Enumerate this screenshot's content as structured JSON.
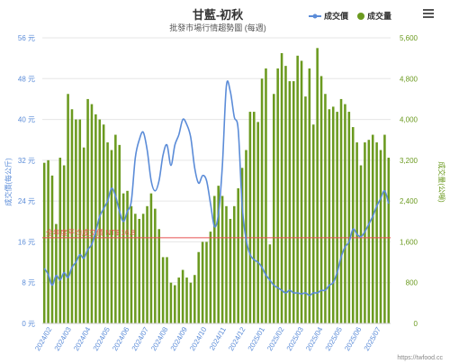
{
  "chart_data": {
    "type": "bar",
    "title": "甘藍-初秋",
    "subtitle": "批發市場行情趨勢圖 (每週)",
    "legend": {
      "position": "top-right",
      "items": [
        {
          "name": "成交價",
          "color": "#5b8cd8",
          "marker": "line"
        },
        {
          "name": "成交量",
          "color": "#6b9a1f",
          "marker": "circle"
        }
      ]
    },
    "ylabel_left": "成交價(每公斤)",
    "ylabel_right": "成交量(公噸)",
    "y_left_range": [
      0,
      56
    ],
    "y_left_ticks": [
      "0 元",
      "8 元",
      "16 元",
      "24 元",
      "32 元",
      "40 元",
      "48 元",
      "56 元"
    ],
    "y_left_tick_values": [
      0,
      8,
      16,
      24,
      32,
      40,
      48,
      56
    ],
    "y_right_range": [
      0,
      5600
    ],
    "y_right_ticks": [
      "0",
      "800",
      "1,600",
      "2,400",
      "3,200",
      "4,000",
      "4,800",
      "5,600"
    ],
    "y_right_tick_values": [
      0,
      800,
      1600,
      2400,
      3200,
      4000,
      4800,
      5600
    ],
    "x_tick_labels": [
      "2024/02",
      "2024/03",
      "2024/04",
      "2024/05",
      "2024/06",
      "2024/07",
      "2024/08",
      "2024/09",
      "2024/10",
      "2024/11",
      "2024/12",
      "2025/01",
      "2025/02",
      "2025/03",
      "2025/04",
      "2025/05",
      "2025/06",
      "2025/07"
    ],
    "series": [
      {
        "name": "成交量",
        "type": "bar",
        "axis": "right",
        "color": "#6b9a1f",
        "values": [
          3150,
          3200,
          2900,
          1950,
          3250,
          3100,
          4500,
          4200,
          4000,
          4000,
          3450,
          4400,
          4300,
          4100,
          4000,
          3900,
          3550,
          3400,
          3700,
          3500,
          2550,
          2600,
          2300,
          2150,
          2050,
          2150,
          2300,
          2550,
          2250,
          1850,
          1300,
          1300,
          800,
          750,
          900,
          1050,
          900,
          800,
          950,
          1400,
          1600,
          1600,
          1800,
          2500,
          2700,
          2500,
          2300,
          2050,
          2300,
          2650,
          3050,
          3400,
          4150,
          4150,
          3950,
          4800,
          5000,
          1550,
          4500,
          5000,
          5300,
          5050,
          4750,
          4750,
          5250,
          5150,
          4450,
          5000,
          3900,
          5400,
          4850,
          4500,
          4200,
          4250,
          4150,
          4400,
          4300,
          4150,
          3850,
          3550,
          3100,
          3550,
          3600,
          3700,
          3550,
          3400,
          3700,
          3250
        ]
      },
      {
        "name": "成交價",
        "type": "line",
        "axis": "left",
        "color": "#5b8cd8",
        "values": [
          10.8,
          9.6,
          7.5,
          9.4,
          8.5,
          10.0,
          9.0,
          11.0,
          12.0,
          13.5,
          12.8,
          14.5,
          15.5,
          18.0,
          21.0,
          22.5,
          24.0,
          26.5,
          25.0,
          22.0,
          20.0,
          22.0,
          24.0,
          32.5,
          36.0,
          37.5,
          34.0,
          28.0,
          26.0,
          28.0,
          33.0,
          35.0,
          31.0,
          35.0,
          37.0,
          40.0,
          39.0,
          36.5,
          30.5,
          27.5,
          29.0,
          28.0,
          23.5,
          19.0,
          21.5,
          31.0,
          46.5,
          45.5,
          40.5,
          38.0,
          23.0,
          16.5,
          13.5,
          12.5,
          12.0,
          11.0,
          9.5,
          8.5,
          7.5,
          7.0,
          6.5,
          6.0,
          6.5,
          6.0,
          6.0,
          5.8,
          6.0,
          5.5,
          6.0,
          6.0,
          6.5,
          6.5,
          7.5,
          8.0,
          10.0,
          13.0,
          15.0,
          16.0,
          18.5,
          17.5,
          17.0,
          18.0,
          19.5,
          21.0,
          23.0,
          24.5,
          26.0,
          23.5
        ]
      }
    ],
    "reference_line": {
      "label": "全年度平均成交價 NT$ 16.8",
      "value": 16.8,
      "axis": "left",
      "color": "#e85050"
    }
  },
  "toolbar": {
    "menu_icon": "hamburger-menu-icon"
  },
  "credit": "https://twfood.cc"
}
